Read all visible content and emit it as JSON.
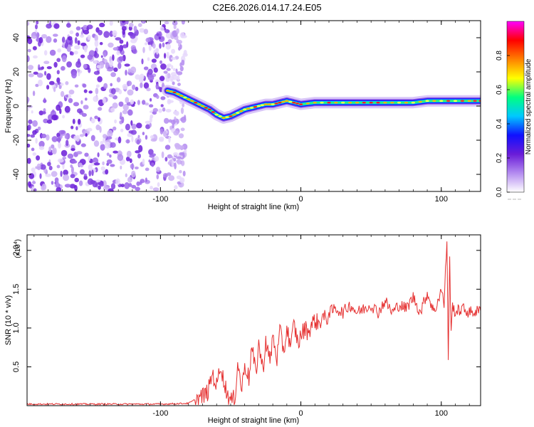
{
  "figure_title": "C2E6.2026.014.17.24.E05",
  "chart_data": [
    {
      "type": "heatmap",
      "title": "C2E6.2026.014.17.24.E05",
      "xlabel": "Height of straight line (km)",
      "ylabel": "Frequency (Hz)",
      "xlim": [
        -195,
        128
      ],
      "ylim": [
        -50,
        50
      ],
      "x_ticks": [
        -100,
        0,
        100
      ],
      "y_ticks": [
        -40,
        -20,
        0,
        20,
        40
      ],
      "colorbar": {
        "label": "Normalized spectral amplitude",
        "range": [
          0,
          1
        ],
        "ticks": [
          0.0,
          0.2,
          0.4,
          0.6,
          0.8
        ],
        "tick_labels": [
          "0.0",
          "0.2",
          "0.4",
          "0.6",
          "0.8"
        ],
        "colors": [
          "#ffffff",
          "#b48cf0",
          "#6a1cd8",
          "#1010ff",
          "#00c8ff",
          "#00ff80",
          "#ffff00",
          "#ff8000",
          "#ff0000",
          "#ff00ff"
        ]
      },
      "noise_region": {
        "x_range": [
          -195,
          -82
        ],
        "y_range": [
          -50,
          50
        ],
        "amplitude": "0.0-0.2"
      },
      "signal_track": {
        "x": [
          -95,
          -90,
          -85,
          -80,
          -75,
          -70,
          -65,
          -60,
          -55,
          -50,
          -45,
          -40,
          -35,
          -30,
          -25,
          -20,
          -15,
          -10,
          -5,
          0,
          10,
          20,
          30,
          40,
          50,
          60,
          70,
          80,
          90,
          100,
          110,
          120,
          128
        ],
        "y": [
          9,
          8,
          6,
          4,
          2,
          0,
          -2,
          -5,
          -7,
          -6,
          -4,
          -2,
          -1,
          0,
          1,
          1,
          2,
          3,
          2,
          1,
          2,
          2,
          2,
          2,
          2,
          2,
          2,
          2,
          3,
          3,
          3,
          3,
          3
        ]
      }
    },
    {
      "type": "line",
      "title": "",
      "xlabel": "Height of straight line (km)",
      "ylabel": "SNR (10 * v/v)",
      "y_scale_label": "(x10",
      "y_scale_exponent": "4",
      "xlim": [
        -195,
        128
      ],
      "ylim": [
        0,
        2.2
      ],
      "x_ticks": [
        -100,
        0,
        100
      ],
      "y_ticks": [
        0.5,
        1.0,
        1.5,
        2.0
      ],
      "y_tick_labels": [
        "0.5",
        "1.0",
        "1.5",
        "2.0"
      ],
      "color": "#e53030",
      "series": [
        {
          "name": "SNR",
          "x": [
            -195,
            -150,
            -100,
            -80,
            -75,
            -70,
            -66,
            -63,
            -60,
            -57,
            -55,
            -52,
            -50,
            -47,
            -45,
            -42,
            -40,
            -37,
            -35,
            -32,
            -30,
            -27,
            -25,
            -22,
            -20,
            -17,
            -15,
            -12,
            -10,
            -7,
            -5,
            -2,
            0,
            3,
            5,
            8,
            10,
            13,
            15,
            18,
            20,
            25,
            30,
            35,
            40,
            45,
            50,
            55,
            60,
            65,
            70,
            75,
            80,
            85,
            90,
            95,
            100,
            102,
            104,
            105,
            106,
            107,
            108,
            110,
            115,
            120,
            128
          ],
          "y": [
            0.02,
            0.02,
            0.02,
            0.03,
            0.08,
            0.12,
            0.18,
            0.42,
            0.25,
            0.55,
            0.3,
            0.15,
            0.05,
            0.1,
            0.55,
            0.2,
            0.55,
            0.35,
            0.75,
            0.4,
            0.8,
            0.45,
            0.85,
            0.55,
            0.9,
            0.6,
            0.95,
            0.7,
            1.0,
            0.75,
            1.05,
            0.8,
            0.9,
            1.0,
            0.95,
            1.05,
            1.1,
            1.05,
            1.15,
            1.1,
            1.2,
            1.25,
            1.2,
            1.3,
            1.2,
            1.25,
            1.3,
            1.2,
            1.35,
            1.2,
            1.3,
            1.25,
            1.4,
            1.2,
            1.45,
            1.2,
            1.5,
            1.3,
            2.15,
            0.6,
            1.9,
            0.9,
            1.3,
            1.2,
            1.25,
            1.2,
            1.22
          ]
        }
      ]
    }
  ]
}
